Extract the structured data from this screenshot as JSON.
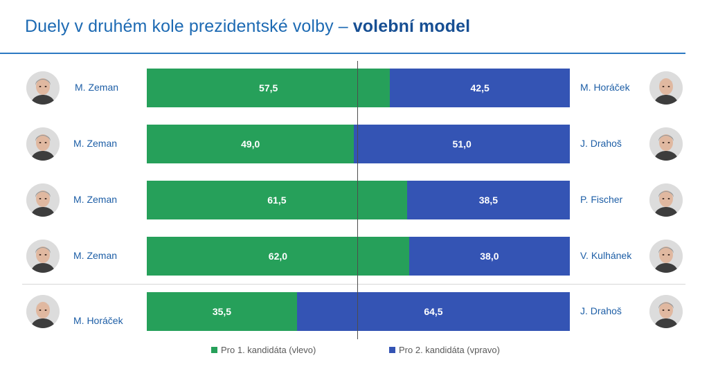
{
  "title": {
    "prefix": "Duely v druhém kole prezidentské volby – ",
    "bold": "volební model"
  },
  "chart_data": {
    "type": "bar",
    "stacked": true,
    "orientation": "horizontal",
    "xlim": [
      0,
      100
    ],
    "colors": {
      "left": "#26a05a",
      "right": "#3454b4"
    },
    "rows": [
      {
        "left_name": "M. Zeman",
        "right_name": "M. Horáček",
        "left_value": 57.5,
        "right_value": 42.5,
        "left_label": "57,5",
        "right_label": "42,5"
      },
      {
        "left_name": "M. Zeman",
        "right_name": "J. Drahoš",
        "left_value": 49.0,
        "right_value": 51.0,
        "left_label": "49,0",
        "right_label": "51,0"
      },
      {
        "left_name": "M. Zeman",
        "right_name": "P. Fischer",
        "left_value": 61.5,
        "right_value": 38.5,
        "left_label": "61,5",
        "right_label": "38,5"
      },
      {
        "left_name": "M. Zeman",
        "right_name": "V. Kulhánek",
        "left_value": 62.0,
        "right_value": 38.0,
        "left_label": "62,0",
        "right_label": "38,0"
      },
      {
        "left_name": "M. Horáček",
        "right_name": "J. Drahoš",
        "left_value": 35.5,
        "right_value": 64.5,
        "left_label": "35,5",
        "right_label": "64,5"
      }
    ],
    "legend": {
      "left": "Pro 1. kandidáta (vlevo)",
      "right": "Pro 2. kandidáta (vpravo)",
      "position": "bottom"
    },
    "reference_line": 50
  }
}
